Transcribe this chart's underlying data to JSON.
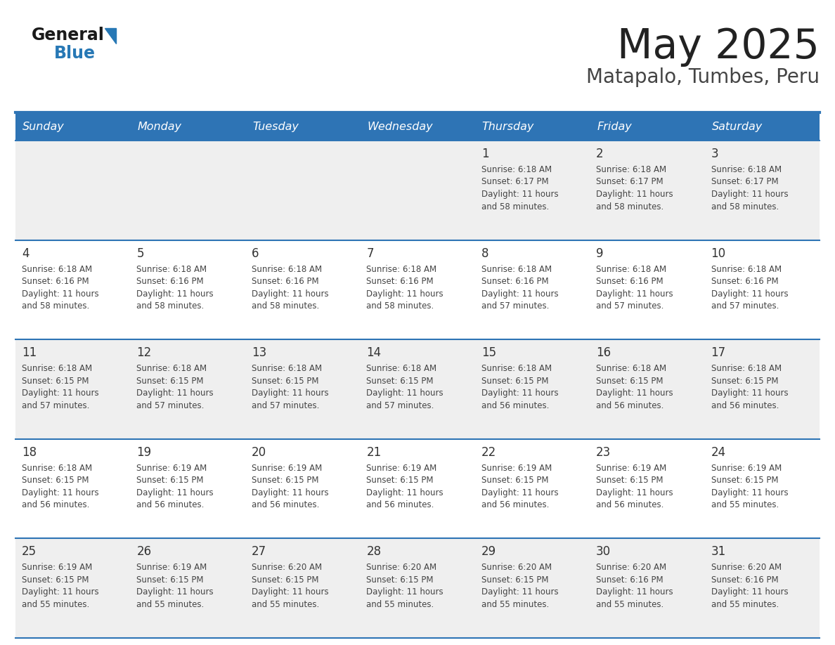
{
  "title": "May 2025",
  "subtitle": "Matapalo, Tumbes, Peru",
  "days_of_week": [
    "Sunday",
    "Monday",
    "Tuesday",
    "Wednesday",
    "Thursday",
    "Friday",
    "Saturday"
  ],
  "header_bg": "#2E74B5",
  "header_text_color": "#FFFFFF",
  "cell_bg_odd": "#EFEFEF",
  "cell_bg_even": "#FFFFFF",
  "cell_border_color": "#2E74B5",
  "day_number_color": "#333333",
  "cell_text_color": "#444444",
  "title_color": "#222222",
  "subtitle_color": "#444444",
  "logo_general_color": "#1A1A1A",
  "logo_blue_color": "#2778B5",
  "weeks": [
    {
      "days": [
        {
          "date": null,
          "sunrise": null,
          "sunset": null,
          "daylight_line1": null,
          "daylight_line2": null
        },
        {
          "date": null,
          "sunrise": null,
          "sunset": null,
          "daylight_line1": null,
          "daylight_line2": null
        },
        {
          "date": null,
          "sunrise": null,
          "sunset": null,
          "daylight_line1": null,
          "daylight_line2": null
        },
        {
          "date": null,
          "sunrise": null,
          "sunset": null,
          "daylight_line1": null,
          "daylight_line2": null
        },
        {
          "date": 1,
          "sunrise": "6:18 AM",
          "sunset": "6:17 PM",
          "daylight_line1": "Daylight: 11 hours",
          "daylight_line2": "and 58 minutes."
        },
        {
          "date": 2,
          "sunrise": "6:18 AM",
          "sunset": "6:17 PM",
          "daylight_line1": "Daylight: 11 hours",
          "daylight_line2": "and 58 minutes."
        },
        {
          "date": 3,
          "sunrise": "6:18 AM",
          "sunset": "6:17 PM",
          "daylight_line1": "Daylight: 11 hours",
          "daylight_line2": "and 58 minutes."
        }
      ]
    },
    {
      "days": [
        {
          "date": 4,
          "sunrise": "6:18 AM",
          "sunset": "6:16 PM",
          "daylight_line1": "Daylight: 11 hours",
          "daylight_line2": "and 58 minutes."
        },
        {
          "date": 5,
          "sunrise": "6:18 AM",
          "sunset": "6:16 PM",
          "daylight_line1": "Daylight: 11 hours",
          "daylight_line2": "and 58 minutes."
        },
        {
          "date": 6,
          "sunrise": "6:18 AM",
          "sunset": "6:16 PM",
          "daylight_line1": "Daylight: 11 hours",
          "daylight_line2": "and 58 minutes."
        },
        {
          "date": 7,
          "sunrise": "6:18 AM",
          "sunset": "6:16 PM",
          "daylight_line1": "Daylight: 11 hours",
          "daylight_line2": "and 58 minutes."
        },
        {
          "date": 8,
          "sunrise": "6:18 AM",
          "sunset": "6:16 PM",
          "daylight_line1": "Daylight: 11 hours",
          "daylight_line2": "and 57 minutes."
        },
        {
          "date": 9,
          "sunrise": "6:18 AM",
          "sunset": "6:16 PM",
          "daylight_line1": "Daylight: 11 hours",
          "daylight_line2": "and 57 minutes."
        },
        {
          "date": 10,
          "sunrise": "6:18 AM",
          "sunset": "6:16 PM",
          "daylight_line1": "Daylight: 11 hours",
          "daylight_line2": "and 57 minutes."
        }
      ]
    },
    {
      "days": [
        {
          "date": 11,
          "sunrise": "6:18 AM",
          "sunset": "6:15 PM",
          "daylight_line1": "Daylight: 11 hours",
          "daylight_line2": "and 57 minutes."
        },
        {
          "date": 12,
          "sunrise": "6:18 AM",
          "sunset": "6:15 PM",
          "daylight_line1": "Daylight: 11 hours",
          "daylight_line2": "and 57 minutes."
        },
        {
          "date": 13,
          "sunrise": "6:18 AM",
          "sunset": "6:15 PM",
          "daylight_line1": "Daylight: 11 hours",
          "daylight_line2": "and 57 minutes."
        },
        {
          "date": 14,
          "sunrise": "6:18 AM",
          "sunset": "6:15 PM",
          "daylight_line1": "Daylight: 11 hours",
          "daylight_line2": "and 57 minutes."
        },
        {
          "date": 15,
          "sunrise": "6:18 AM",
          "sunset": "6:15 PM",
          "daylight_line1": "Daylight: 11 hours",
          "daylight_line2": "and 56 minutes."
        },
        {
          "date": 16,
          "sunrise": "6:18 AM",
          "sunset": "6:15 PM",
          "daylight_line1": "Daylight: 11 hours",
          "daylight_line2": "and 56 minutes."
        },
        {
          "date": 17,
          "sunrise": "6:18 AM",
          "sunset": "6:15 PM",
          "daylight_line1": "Daylight: 11 hours",
          "daylight_line2": "and 56 minutes."
        }
      ]
    },
    {
      "days": [
        {
          "date": 18,
          "sunrise": "6:18 AM",
          "sunset": "6:15 PM",
          "daylight_line1": "Daylight: 11 hours",
          "daylight_line2": "and 56 minutes."
        },
        {
          "date": 19,
          "sunrise": "6:19 AM",
          "sunset": "6:15 PM",
          "daylight_line1": "Daylight: 11 hours",
          "daylight_line2": "and 56 minutes."
        },
        {
          "date": 20,
          "sunrise": "6:19 AM",
          "sunset": "6:15 PM",
          "daylight_line1": "Daylight: 11 hours",
          "daylight_line2": "and 56 minutes."
        },
        {
          "date": 21,
          "sunrise": "6:19 AM",
          "sunset": "6:15 PM",
          "daylight_line1": "Daylight: 11 hours",
          "daylight_line2": "and 56 minutes."
        },
        {
          "date": 22,
          "sunrise": "6:19 AM",
          "sunset": "6:15 PM",
          "daylight_line1": "Daylight: 11 hours",
          "daylight_line2": "and 56 minutes."
        },
        {
          "date": 23,
          "sunrise": "6:19 AM",
          "sunset": "6:15 PM",
          "daylight_line1": "Daylight: 11 hours",
          "daylight_line2": "and 56 minutes."
        },
        {
          "date": 24,
          "sunrise": "6:19 AM",
          "sunset": "6:15 PM",
          "daylight_line1": "Daylight: 11 hours",
          "daylight_line2": "and 55 minutes."
        }
      ]
    },
    {
      "days": [
        {
          "date": 25,
          "sunrise": "6:19 AM",
          "sunset": "6:15 PM",
          "daylight_line1": "Daylight: 11 hours",
          "daylight_line2": "and 55 minutes."
        },
        {
          "date": 26,
          "sunrise": "6:19 AM",
          "sunset": "6:15 PM",
          "daylight_line1": "Daylight: 11 hours",
          "daylight_line2": "and 55 minutes."
        },
        {
          "date": 27,
          "sunrise": "6:20 AM",
          "sunset": "6:15 PM",
          "daylight_line1": "Daylight: 11 hours",
          "daylight_line2": "and 55 minutes."
        },
        {
          "date": 28,
          "sunrise": "6:20 AM",
          "sunset": "6:15 PM",
          "daylight_line1": "Daylight: 11 hours",
          "daylight_line2": "and 55 minutes."
        },
        {
          "date": 29,
          "sunrise": "6:20 AM",
          "sunset": "6:15 PM",
          "daylight_line1": "Daylight: 11 hours",
          "daylight_line2": "and 55 minutes."
        },
        {
          "date": 30,
          "sunrise": "6:20 AM",
          "sunset": "6:16 PM",
          "daylight_line1": "Daylight: 11 hours",
          "daylight_line2": "and 55 minutes."
        },
        {
          "date": 31,
          "sunrise": "6:20 AM",
          "sunset": "6:16 PM",
          "daylight_line1": "Daylight: 11 hours",
          "daylight_line2": "and 55 minutes."
        }
      ]
    }
  ],
  "fig_width": 11.88,
  "fig_height": 9.18,
  "dpi": 100
}
